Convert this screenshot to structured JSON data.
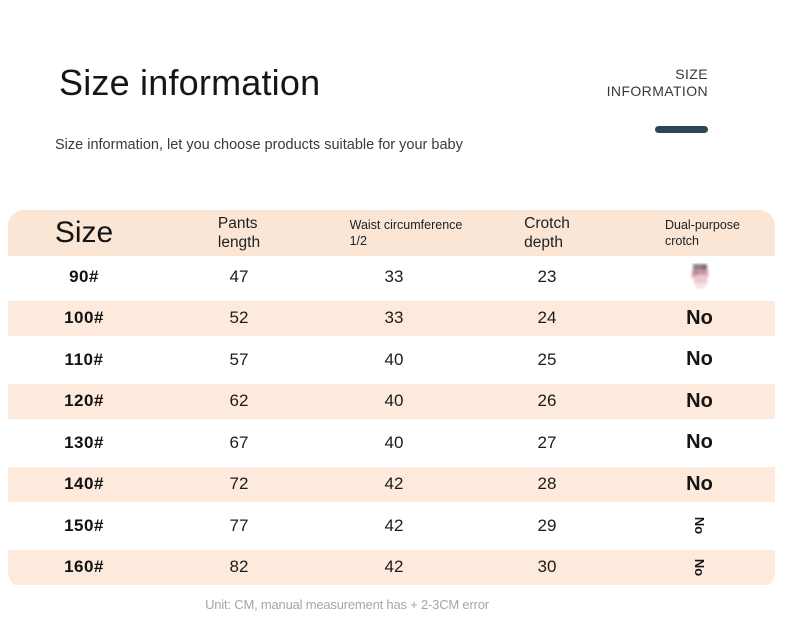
{
  "page": {
    "title": "Size information",
    "subtitle": "Size information, let you choose products suitable for your baby",
    "watermark": {
      "line1": "SIZE",
      "line2": "INFORMATION"
    },
    "footer_note": "Unit: CM, manual measurement has + 2-3CM error"
  },
  "colors": {
    "header_bg": "#fbe6d6",
    "row_alt_bg": "#fdeadd",
    "accent_bar": "#2c4656",
    "text_primary": "#1a1a1a",
    "text_muted": "#a6a6a6"
  },
  "table": {
    "columns": [
      {
        "id": "size",
        "label_lines": [
          "Size"
        ]
      },
      {
        "id": "pants_length",
        "label_lines": [
          "Pants",
          "length"
        ]
      },
      {
        "id": "waist",
        "label_lines": [
          "Waist circumference",
          "1/2"
        ]
      },
      {
        "id": "crotch_depth",
        "label_lines": [
          "Crotch",
          "depth"
        ]
      },
      {
        "id": "dual_purpose",
        "label_lines": [
          "Dual-purpose",
          "crotch"
        ]
      }
    ],
    "rows": [
      {
        "size": "90#",
        "pants_length": "47",
        "waist": "33",
        "crotch_depth": "23",
        "dual_purpose": {
          "kind": "image",
          "icon": "mini-photo"
        }
      },
      {
        "size": "100#",
        "pants_length": "52",
        "waist": "33",
        "crotch_depth": "24",
        "dual_purpose": {
          "kind": "text",
          "value": "No"
        }
      },
      {
        "size": "110#",
        "pants_length": "57",
        "waist": "40",
        "crotch_depth": "25",
        "dual_purpose": {
          "kind": "text",
          "value": "No"
        }
      },
      {
        "size": "120#",
        "pants_length": "62",
        "waist": "40",
        "crotch_depth": "26",
        "dual_purpose": {
          "kind": "text",
          "value": "No"
        }
      },
      {
        "size": "130#",
        "pants_length": "67",
        "waist": "40",
        "crotch_depth": "27",
        "dual_purpose": {
          "kind": "text",
          "value": "No"
        }
      },
      {
        "size": "140#",
        "pants_length": "72",
        "waist": "42",
        "crotch_depth": "28",
        "dual_purpose": {
          "kind": "text",
          "value": "No"
        }
      },
      {
        "size": "150#",
        "pants_length": "77",
        "waist": "42",
        "crotch_depth": "29",
        "dual_purpose": {
          "kind": "text_vertical",
          "value": "No"
        }
      },
      {
        "size": "160#",
        "pants_length": "82",
        "waist": "42",
        "crotch_depth": "30",
        "dual_purpose": {
          "kind": "text_vertical",
          "value": "No"
        }
      }
    ],
    "unit_note": "CM"
  }
}
